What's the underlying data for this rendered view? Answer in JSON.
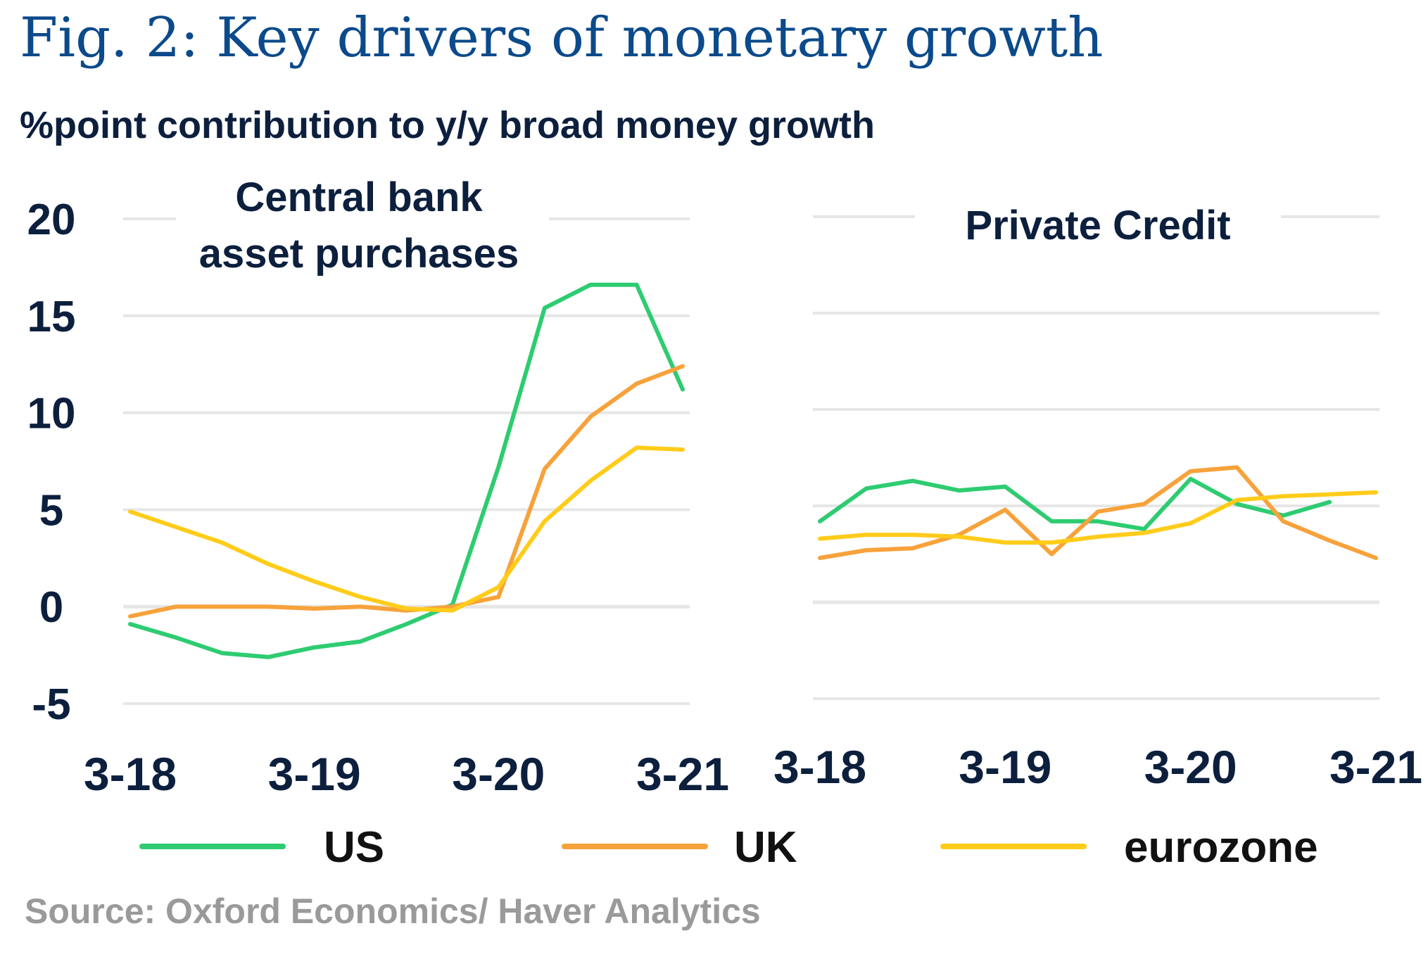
{
  "title": "Fig. 2: Key drivers of monetary growth",
  "subtitle": "%point contribution to y/y broad money growth",
  "source": "Source: Oxford Economics/ Haver Analytics",
  "colors": {
    "US": "#2ecc71",
    "UK": "#f7a23b",
    "eurozone": "#ffcc1a",
    "text": "#0c1f3d",
    "grid": "#e6e6e6"
  },
  "legend": [
    {
      "name": "US",
      "color": "#2ecc71"
    },
    {
      "name": "UK",
      "color": "#f7a23b"
    },
    {
      "name": "eurozone",
      "color": "#ffcc1a"
    }
  ],
  "chart_data": [
    {
      "type": "line",
      "title_lines": [
        "Central bank",
        "asset purchases"
      ],
      "ylim": [
        -5,
        20
      ],
      "yticks": [
        "20",
        "15",
        "10",
        "5",
        "0",
        "-5"
      ],
      "ytick_values": [
        20,
        15,
        10,
        5,
        0,
        -5
      ],
      "xticks": [
        "3-18",
        "3-19",
        "3-20",
        "3-21"
      ],
      "xlim": [
        0,
        12
      ],
      "xtick_positions": [
        0,
        4,
        8,
        12
      ],
      "series": [
        {
          "name": "US",
          "x": [
            0,
            1,
            2,
            3,
            4,
            5,
            6,
            7,
            8,
            9,
            10,
            11,
            12
          ],
          "values": [
            -0.9,
            -1.6,
            -2.4,
            -2.6,
            -2.1,
            -1.8,
            -0.9,
            0.1,
            7.2,
            15.4,
            16.6,
            16.6,
            11.2
          ]
        },
        {
          "name": "UK",
          "x": [
            0,
            1,
            2,
            3,
            4,
            5,
            6,
            7,
            8,
            9,
            10,
            11,
            12
          ],
          "values": [
            -0.5,
            0.0,
            0.0,
            0.0,
            -0.1,
            0.0,
            -0.2,
            0.0,
            0.5,
            7.1,
            9.8,
            11.5,
            12.4
          ]
        },
        {
          "name": "eurozone",
          "x": [
            0,
            1,
            2,
            3,
            4,
            5,
            6,
            7,
            8,
            9,
            10,
            11,
            12
          ],
          "values": [
            4.9,
            4.1,
            3.3,
            2.2,
            1.3,
            0.5,
            -0.1,
            -0.2,
            1.0,
            4.4,
            6.5,
            8.2,
            8.1
          ]
        }
      ]
    },
    {
      "type": "line",
      "title_lines": [
        "Private Credit"
      ],
      "ylim": [
        -5,
        20
      ],
      "yticks": [],
      "ytick_values": [
        20,
        15,
        10,
        5,
        0,
        -5
      ],
      "xticks": [
        "3-18",
        "3-19",
        "3-20",
        "3-21"
      ],
      "xlim": [
        0,
        12
      ],
      "xtick_positions": [
        0,
        4,
        8,
        12
      ],
      "series": [
        {
          "name": "US",
          "x": [
            0,
            1,
            2,
            3,
            4,
            5,
            6,
            7,
            8,
            9,
            10,
            11
          ],
          "values": [
            4.2,
            5.9,
            6.3,
            5.8,
            6.0,
            4.2,
            4.2,
            3.8,
            6.4,
            5.1,
            4.5,
            5.2
          ]
        },
        {
          "name": "UK",
          "x": [
            0,
            1,
            2,
            3,
            4,
            5,
            6,
            7,
            8,
            9,
            10,
            11,
            12
          ],
          "values": [
            2.3,
            2.7,
            2.8,
            3.5,
            4.8,
            2.5,
            4.7,
            5.1,
            6.8,
            7.0,
            4.2,
            3.2,
            2.3
          ]
        },
        {
          "name": "eurozone",
          "x": [
            0,
            1,
            2,
            3,
            4,
            5,
            6,
            7,
            8,
            9,
            10,
            11,
            12
          ],
          "values": [
            3.3,
            3.5,
            3.5,
            3.4,
            3.1,
            3.1,
            3.4,
            3.6,
            4.1,
            5.3,
            5.5,
            5.6,
            5.7
          ]
        }
      ]
    }
  ]
}
